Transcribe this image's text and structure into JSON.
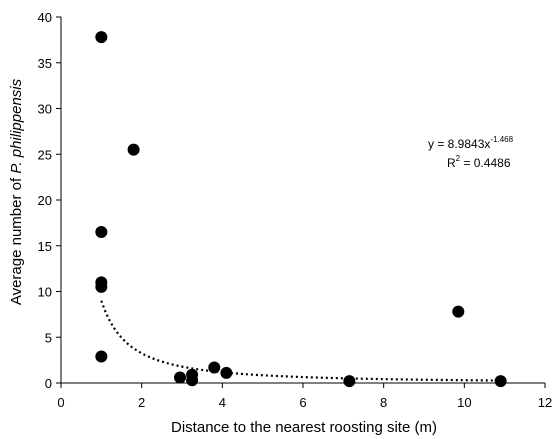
{
  "chart_data": {
    "type": "scatter",
    "title": "",
    "xlabel": "Distance to the nearest roosting site (m)",
    "ylabel_prefix": "Average number of ",
    "ylabel_species": "P. philippensis",
    "xlim": [
      0,
      12
    ],
    "ylim": [
      0,
      40
    ],
    "xticks": [
      0,
      2,
      4,
      6,
      8,
      10,
      12
    ],
    "yticks": [
      0,
      5,
      10,
      15,
      20,
      25,
      30,
      35,
      40
    ],
    "grid": false,
    "series": [
      {
        "points": [
          [
            1.0,
            37.8
          ],
          [
            1.8,
            25.5
          ],
          [
            1.0,
            16.5
          ],
          [
            1.0,
            11.0
          ],
          [
            1.0,
            10.5
          ],
          [
            1.0,
            2.9
          ],
          [
            2.95,
            0.6
          ],
          [
            3.25,
            0.9
          ],
          [
            3.25,
            0.3
          ],
          [
            3.8,
            1.7
          ],
          [
            4.1,
            1.1
          ],
          [
            7.15,
            0.2
          ],
          [
            9.85,
            7.8
          ],
          [
            10.9,
            0.2
          ]
        ]
      }
    ],
    "trendline": {
      "type": "power",
      "a": 8.9843,
      "b": -1.468,
      "x_range": [
        1.0,
        10.9
      ],
      "equation_prefix": "y = 8.9843x",
      "equation_exponent": "-1.468",
      "r2_prefix": "R",
      "r2_exponent": "2",
      "r2_suffix": " = 0.4486"
    },
    "colors": {
      "points": "#000000",
      "axis": "#000000",
      "trendline": "#000000"
    }
  }
}
